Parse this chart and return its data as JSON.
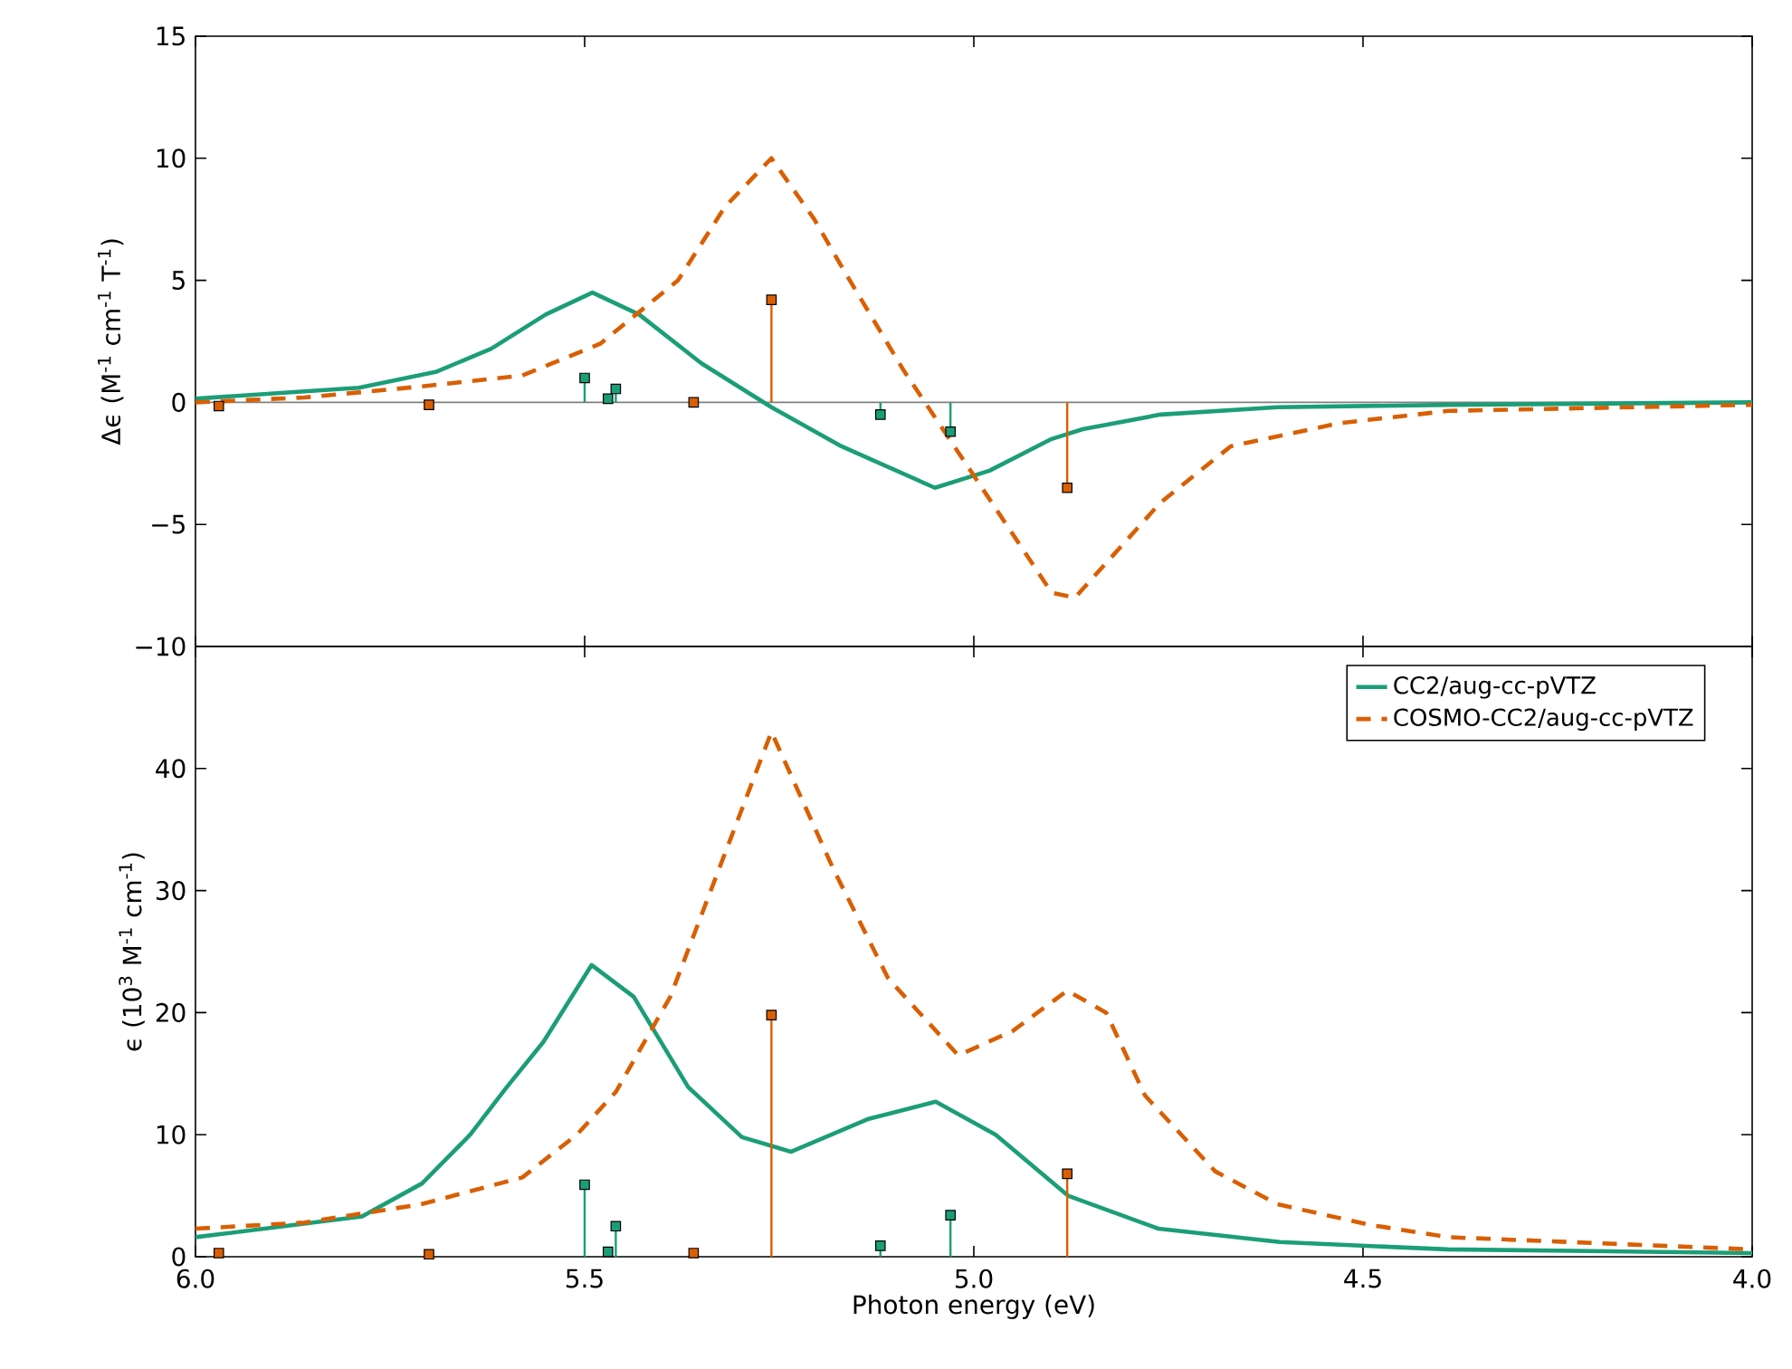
{
  "chart_data": [
    {
      "type": "line",
      "ylabel": "Δϵ (M$^{-1}$ cm$^{-1}$ T$^{-1}$)",
      "xlim": [
        6.0,
        4.0
      ],
      "xticks": [
        6.0,
        5.5,
        5.0,
        4.5,
        4.0
      ],
      "ylim": [
        -10,
        15
      ],
      "yticks": [
        {
          "value": -10,
          "label": "−10"
        },
        {
          "value": -5,
          "label": "−5"
        },
        0,
        5,
        10,
        15
      ],
      "tick_labels": "y",
      "legend": false,
      "ref_lines": [
        {
          "axis": "y",
          "value": 0,
          "color": "#808080"
        }
      ],
      "series": [
        {
          "color": "#1b9e77",
          "line_style": "solid",
          "x": [
            6.0,
            5.79,
            5.69,
            5.62,
            5.55,
            5.49,
            5.43,
            5.35,
            5.26,
            5.17,
            5.05,
            4.98,
            4.9,
            4.86,
            4.76,
            4.61,
            4.39,
            4.0
          ],
          "values": [
            0.15,
            0.6,
            1.26,
            2.2,
            3.6,
            4.5,
            3.6,
            1.6,
            -0.2,
            -1.8,
            -3.5,
            -2.8,
            -1.5,
            -1.1,
            -0.5,
            -0.2,
            -0.1,
            0.0
          ]
        },
        {
          "color": "#d95f02",
          "line_style": "dashed",
          "x": [
            6.0,
            5.86,
            5.71,
            5.58,
            5.48,
            5.38,
            5.32,
            5.26,
            5.205,
            5.165,
            5.09,
            5.0,
            4.9,
            4.87,
            4.76,
            4.67,
            4.53,
            4.39,
            4.0
          ],
          "values": [
            0.0,
            0.2,
            0.65,
            1.1,
            2.4,
            5.0,
            8.0,
            10.0,
            7.5,
            5.3,
            1.3,
            -3.0,
            -7.8,
            -8.0,
            -4.1,
            -1.8,
            -0.85,
            -0.35,
            -0.1
          ]
        },
        {
          "type": "lollipop",
          "color": "#d95f02",
          "marker": "square",
          "x": [
            5.97,
            5.7,
            5.36,
            5.26,
            4.88
          ],
          "values": [
            -0.15,
            -0.1,
            0.0,
            4.2,
            -3.5
          ]
        },
        {
          "type": "lollipop",
          "color": "#1b9e77",
          "marker": "square",
          "x": [
            5.5,
            5.47,
            5.46,
            5.12,
            5.03
          ],
          "values": [
            1.0,
            0.15,
            0.55,
            -0.5,
            -1.2
          ]
        }
      ]
    },
    {
      "type": "line",
      "xlabel": "Photon energy (eV)",
      "ylabel": "ϵ (10$^{3}$ M$^{-1}$ cm$^{-1}$)",
      "xlim": [
        6.0,
        4.0
      ],
      "xticks": [
        {
          "value": 6.0,
          "label": "6.0"
        },
        {
          "value": 5.5,
          "label": "5.5"
        },
        {
          "value": 5.0,
          "label": "5.0"
        },
        {
          "value": 4.5,
          "label": "4.5"
        },
        {
          "value": 4.0,
          "label": "4.0"
        }
      ],
      "ylim": [
        0,
        50
      ],
      "yticks": [
        0,
        10,
        20,
        30,
        40
      ],
      "legend": "top right",
      "series": [
        {
          "name": "CC2/aug-cc-pVTZ",
          "color": "#1b9e77",
          "line_style": "solid",
          "x": [
            6.0,
            5.786,
            5.709,
            5.647,
            5.6,
            5.553,
            5.491,
            5.437,
            5.367,
            5.298,
            5.235,
            5.135,
            5.049,
            4.972,
            4.879,
            4.763,
            4.607,
            4.391,
            4.0
          ],
          "values": [
            1.6,
            3.3,
            6.0,
            10.0,
            13.9,
            17.6,
            23.9,
            21.3,
            13.9,
            9.8,
            8.6,
            11.3,
            12.7,
            10.0,
            5.0,
            2.3,
            1.2,
            0.6,
            0.3
          ]
        },
        {
          "name": "COSMO-CC2/aug-cc-pVTZ",
          "color": "#d95f02",
          "line_style": "dashed",
          "x": [
            6.0,
            5.86,
            5.71,
            5.58,
            5.51,
            5.46,
            5.39,
            5.32,
            5.26,
            5.18,
            5.11,
            5.02,
            4.95,
            4.88,
            4.83,
            4.78,
            4.69,
            4.61,
            4.49,
            4.39,
            4.0
          ],
          "values": [
            2.3,
            2.8,
            4.3,
            6.5,
            10.0,
            13.5,
            21.3,
            33.0,
            43.0,
            31.7,
            22.8,
            16.5,
            18.5,
            21.8,
            20.0,
            13.2,
            7.0,
            4.3,
            2.6,
            1.6,
            0.6
          ]
        },
        {
          "type": "lollipop",
          "color": "#d95f02",
          "marker": "square",
          "x": [
            5.97,
            5.7,
            5.36,
            5.26,
            4.88
          ],
          "values": [
            0.3,
            0.2,
            0.3,
            19.8,
            6.8
          ]
        },
        {
          "type": "lollipop",
          "color": "#1b9e77",
          "marker": "square",
          "x": [
            5.5,
            5.47,
            5.46,
            5.12,
            5.03
          ],
          "values": [
            5.9,
            0.4,
            2.5,
            0.9,
            3.4
          ]
        }
      ]
    }
  ]
}
